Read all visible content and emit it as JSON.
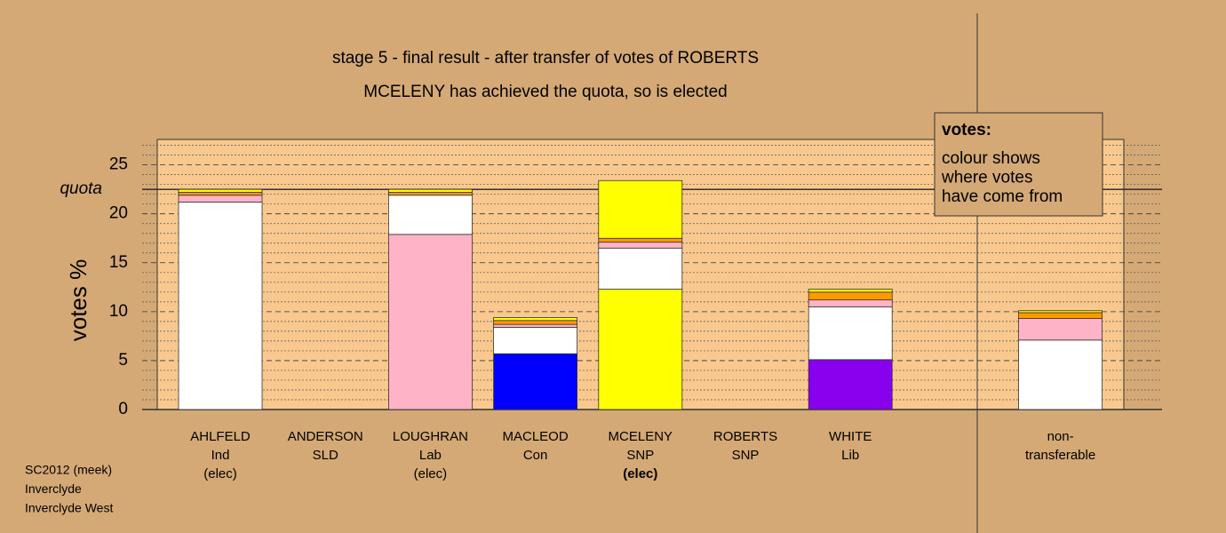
{
  "chart_data": {
    "type": "stacked_bar",
    "title": "stage 5 - final result - after transfer of votes of ROBERTS",
    "subtitle": "MCELENY has achieved the quota, so is elected",
    "y_label": "votes %",
    "categories": [
      [
        "AHLFELD",
        "Ind",
        "(elec)"
      ],
      [
        "ANDERSON",
        "SLD"
      ],
      [
        "LOUGHRAN",
        "Lab",
        "(elec)"
      ],
      [
        "MACLEOD",
        "Con"
      ],
      [
        "MCELENY",
        "SNP",
        "(elec)"
      ],
      [
        "ROBERTS",
        "SNP"
      ],
      [
        "WHITE",
        "Lib"
      ],
      null,
      [
        "non-",
        "transferable"
      ]
    ],
    "newly_elected": "MCELENY",
    "series": [
      {
        "colors": [
          "#ffffff",
          "#ff9900",
          "#ffb3c6",
          "#0000ff",
          "#ffff00",
          "#ffff00",
          "#8800ee",
          null,
          "#ffffff"
        ],
        "values": [
          21.2,
          0,
          17.9,
          5.7,
          12.3,
          0,
          5.1,
          null,
          0
        ]
      },
      {
        "color": "#ffffff",
        "values": [
          0,
          0,
          4.0,
          2.7,
          4.2,
          0,
          5.4,
          null,
          7.1
        ]
      },
      {
        "color": "#ffb3c6",
        "values": [
          0.7,
          0,
          0,
          0.3,
          0.6,
          0,
          0.7,
          null,
          2.2
        ]
      },
      {
        "color": "#ff9900",
        "values": [
          0.3,
          0,
          0.3,
          0.4,
          0.4,
          0,
          0.8,
          null,
          0.6
        ]
      },
      {
        "color": "#ffff00",
        "values": [
          0.3,
          0,
          0.3,
          0.3,
          5.9,
          0,
          0.3,
          null,
          0.2
        ]
      }
    ],
    "ylim": [
      0,
      27.6
    ],
    "yticks": [
      0,
      5,
      10,
      15,
      20,
      25
    ],
    "minor_yticks": [
      1,
      2,
      3,
      4,
      6,
      7,
      8,
      9,
      11,
      12,
      13,
      14,
      16,
      17,
      18,
      19,
      21,
      22,
      23,
      24,
      26,
      27
    ],
    "quota": {
      "value": 22.5,
      "label": "quota"
    },
    "legend": {
      "title": "votes:",
      "lines": [
        "colour shows",
        "where votes",
        "have come from"
      ]
    },
    "footer": [
      "SC2012 (meek)",
      "Inverclyde",
      "Inverclyde West"
    ]
  }
}
